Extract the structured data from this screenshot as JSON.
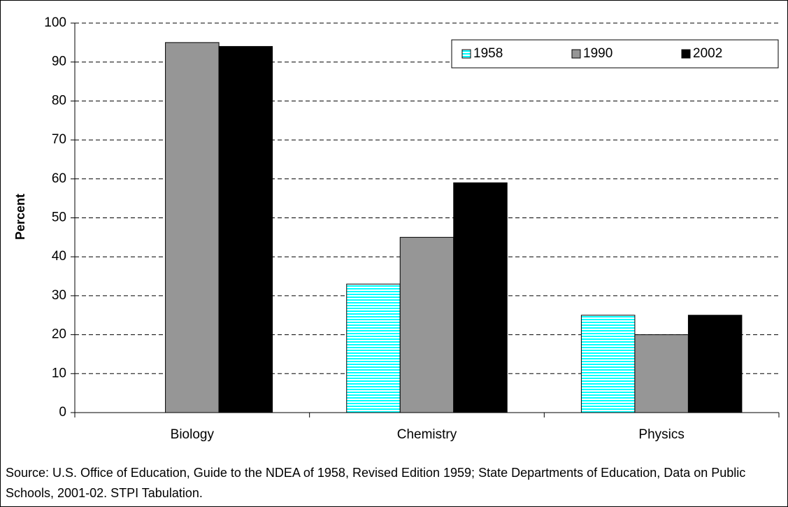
{
  "chart_data": {
    "type": "bar",
    "categories": [
      "Biology",
      "Chemistry",
      "Physics"
    ],
    "series": [
      {
        "name": "1958",
        "color": "#00ffff",
        "values": [
          null,
          33,
          25
        ]
      },
      {
        "name": "1990",
        "color": "#969696",
        "values": [
          95,
          45,
          20
        ]
      },
      {
        "name": "2002",
        "color": "#000000",
        "values": [
          94,
          59,
          25
        ]
      }
    ],
    "y_label": "Percent",
    "ylim": [
      0,
      100
    ],
    "yticks": [
      0,
      10,
      20,
      30,
      40,
      50,
      60,
      70,
      80,
      90,
      100
    ],
    "grid": true,
    "legend": "top-right",
    "source": "Source:  U.S. Office of Education, Guide to the NDEA of 1958, Revised Edition 1959; State Departments of Education, Data on Public Schools, 2001-02. STPI Tabulation."
  }
}
